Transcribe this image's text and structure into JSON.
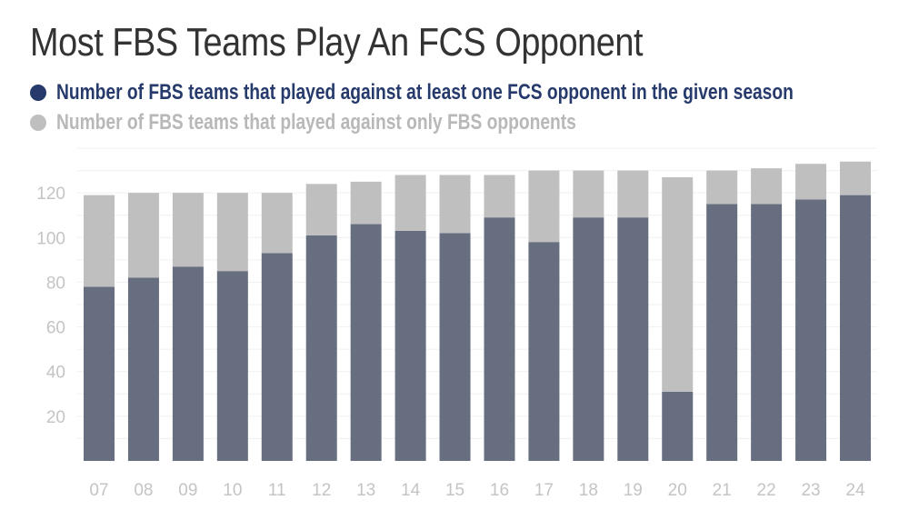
{
  "chart_data": {
    "type": "bar",
    "stacked": true,
    "title": "Most FBS Teams Play An FCS Opponent",
    "categories": [
      "07",
      "08",
      "09",
      "10",
      "11",
      "12",
      "13",
      "14",
      "15",
      "16",
      "17",
      "18",
      "19",
      "20",
      "21",
      "22",
      "23",
      "24"
    ],
    "series": [
      {
        "name": "Number of FBS teams that played against at least one FCS opponent in the given season",
        "color": "#666e80",
        "legend_color": "#263a6b",
        "values": [
          78,
          82,
          87,
          85,
          93,
          101,
          106,
          103,
          102,
          109,
          98,
          109,
          109,
          31,
          115,
          115,
          117,
          119
        ]
      },
      {
        "name": "Number of FBS teams that played against only FBS opponents",
        "color": "#bfbfbf",
        "legend_color": "#bfbfbf",
        "values": [
          41,
          38,
          33,
          35,
          27,
          23,
          19,
          25,
          26,
          19,
          32,
          21,
          21,
          96,
          15,
          16,
          16,
          15
        ]
      }
    ],
    "ylim": [
      0,
      140
    ],
    "yticks": [
      20,
      40,
      60,
      80,
      100,
      120
    ],
    "grid": true,
    "legend": "top-left"
  }
}
